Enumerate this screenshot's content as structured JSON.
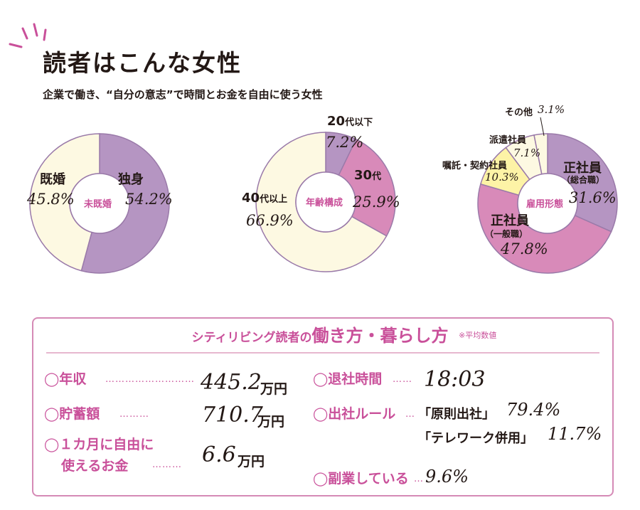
{
  "header": {
    "title": "読者はこんな女性",
    "subtitle": "企業で働き、“自分の意志”で時間とお金を自由に使う女性"
  },
  "colors": {
    "purple": "#b595c2",
    "pink": "#d88ab9",
    "cream": "#fdf9e2",
    "yellow": "#fdf3a6",
    "accent": "#c9509a",
    "border": "#9a7aa9"
  },
  "chart_data": [
    {
      "type": "pie",
      "center_label": "未既婚",
      "slices": [
        {
          "label": "独身",
          "value": 54.2,
          "value_label": "54.2%",
          "color": "#b595c2"
        },
        {
          "label": "既婚",
          "value": 45.8,
          "value_label": "45.8%",
          "color": "#fdf9e2"
        }
      ]
    },
    {
      "type": "pie",
      "center_label": "年齢構成",
      "slices": [
        {
          "label_num": "20",
          "label_suffix": "代以下",
          "value": 7.2,
          "value_label": "7.2%",
          "color": "#b595c2"
        },
        {
          "label_num": "30",
          "label_suffix": "代",
          "value": 25.9,
          "value_label": "25.9%",
          "color": "#d88ab9"
        },
        {
          "label_num": "40",
          "label_suffix": "代以上",
          "value": 66.9,
          "value_label": "66.9%",
          "color": "#fdf9e2"
        }
      ]
    },
    {
      "type": "pie",
      "center_label": "雇用形態",
      "slices": [
        {
          "label": "正社員",
          "sublabel": "（総合職）",
          "value": 31.6,
          "value_label": "31.6%",
          "color": "#b595c2"
        },
        {
          "label": "正社員",
          "sublabel": "（一般職）",
          "value": 47.8,
          "value_label": "47.8%",
          "color": "#d88ab9"
        },
        {
          "label": "嘱託・契約社員",
          "value": 10.3,
          "value_label": "10.3%",
          "color": "#fdf3a6"
        },
        {
          "label": "派遣社員",
          "value": 7.1,
          "value_label": "7.1%",
          "color": "#fdf9e2"
        },
        {
          "label": "その他",
          "value": 3.1,
          "value_label": "3.1%",
          "color": "#fdf9e2"
        }
      ]
    }
  ],
  "panel": {
    "title_pre": "シティリビング読者の",
    "title_main": "働き方・暮らし方",
    "note": "※平均数値",
    "dots": "………………………",
    "dots_short": "……",
    "dots_mid": "………",
    "dots_tiny": "…",
    "items": {
      "income": {
        "label": "◯年収",
        "value": "445.2",
        "unit": "万円"
      },
      "savings": {
        "label": "◯貯蓄額",
        "value": "710.7",
        "unit": "万円"
      },
      "monthly": {
        "label_line1": "◯１カ月に自由に",
        "label_line2": "使えるお金",
        "value": "6.6",
        "unit": "万円"
      },
      "leave_time": {
        "label": "◯退社時間",
        "value": "18:03"
      },
      "office_rule": {
        "label": "◯出社ルール",
        "rule1_label": "「原則出社」",
        "rule1_value": "79.4%",
        "rule2_label": "「テレワーク併用」",
        "rule2_value": "11.7%"
      },
      "side_job": {
        "label": "◯副業している",
        "value": "9.6%"
      }
    }
  }
}
